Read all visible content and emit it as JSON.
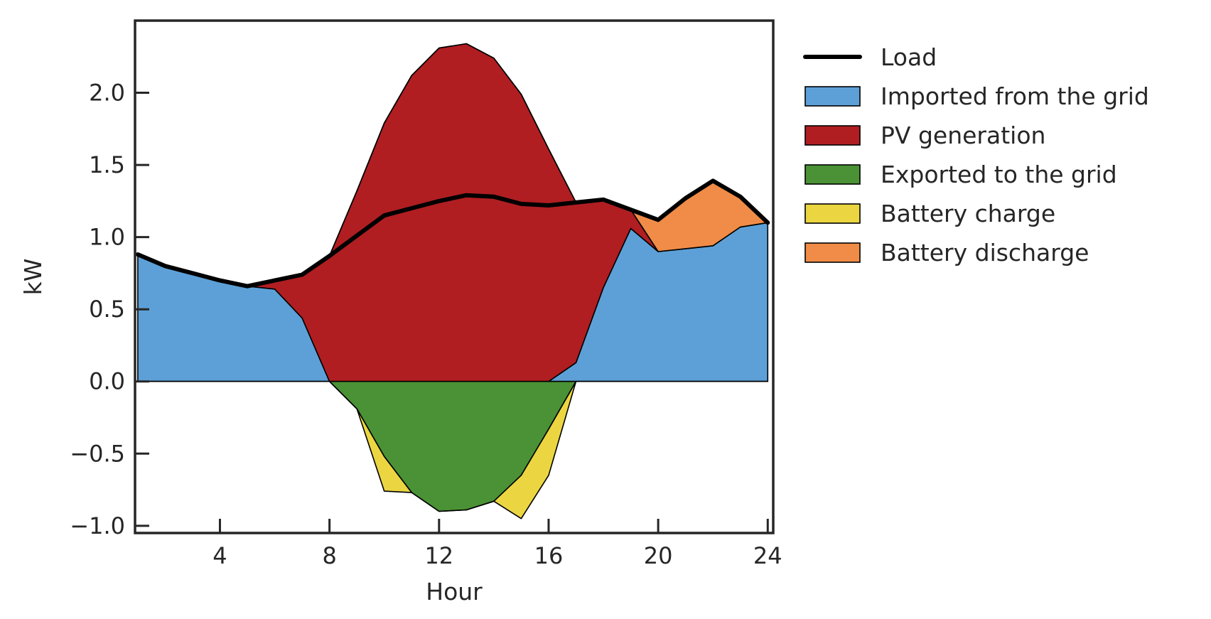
{
  "chart_data": {
    "type": "area",
    "title": "",
    "xlabel": "Hour",
    "ylabel": "kW",
    "xlim": [
      0.9,
      24.2
    ],
    "ylim": [
      -1.05,
      2.5
    ],
    "xticks": [
      4,
      8,
      12,
      16,
      20,
      24
    ],
    "yticks": [
      -1.0,
      -0.5,
      0.0,
      0.5,
      1.0,
      1.5,
      2.0
    ],
    "ytick_labels": [
      "−1.0",
      "−0.5",
      "0.0",
      "0.5",
      "1.0",
      "1.5",
      "2.0"
    ],
    "grid": false,
    "legend_position": "outside-right",
    "x": [
      1,
      2,
      3,
      4,
      5,
      6,
      7,
      8,
      9,
      10,
      11,
      12,
      13,
      14,
      15,
      16,
      17,
      18,
      19,
      20,
      21,
      22,
      23,
      24
    ],
    "series": [
      {
        "name": "Load",
        "kind": "line",
        "color": "#000000",
        "values": [
          0.88,
          0.8,
          0.75,
          0.7,
          0.66,
          0.7,
          0.74,
          0.87,
          1.01,
          1.15,
          1.2,
          1.25,
          1.29,
          1.28,
          1.23,
          1.22,
          1.24,
          1.26,
          1.19,
          1.12,
          1.27,
          1.39,
          1.28,
          1.1
        ]
      },
      {
        "name": "Imported from the grid",
        "kind": "area-positive",
        "color": "#5DA0D7",
        "values": [
          0.88,
          0.8,
          0.75,
          0.7,
          0.66,
          0.64,
          0.44,
          0.0,
          0.0,
          0.0,
          0.0,
          0.0,
          0.0,
          0.0,
          0.0,
          0.0,
          0.13,
          0.65,
          1.06,
          0.9,
          0.92,
          0.94,
          1.07,
          1.1
        ]
      },
      {
        "name": "PV generation",
        "kind": "area-positive",
        "color": "#B01E22",
        "values": [
          0.0,
          0.0,
          0.0,
          0.0,
          0.0,
          0.06,
          0.3,
          0.87,
          1.32,
          1.79,
          2.12,
          2.31,
          2.34,
          2.24,
          1.99,
          1.61,
          1.11,
          0.61,
          0.13,
          0.0,
          0.0,
          0.0,
          0.0,
          0.0
        ]
      },
      {
        "name": "Exported to the grid",
        "kind": "area-negative",
        "color": "#4A9235",
        "values": [
          0.0,
          0.0,
          0.0,
          0.0,
          0.0,
          0.0,
          0.0,
          0.0,
          -0.19,
          -0.52,
          -0.77,
          -0.9,
          -0.89,
          -0.83,
          -0.65,
          -0.33,
          0.0,
          0.0,
          0.0,
          0.0,
          0.0,
          0.0,
          0.0,
          0.0
        ]
      },
      {
        "name": "Battery charge",
        "kind": "area-negative",
        "color": "#EBD642",
        "values": [
          0.0,
          0.0,
          0.0,
          0.0,
          0.0,
          0.0,
          0.0,
          0.0,
          0.0,
          -0.24,
          0.0,
          0.0,
          0.0,
          0.0,
          -0.3,
          -0.32,
          0.0,
          0.0,
          0.0,
          0.0,
          0.0,
          0.0,
          0.0,
          0.0
        ]
      },
      {
        "name": "Battery discharge",
        "kind": "area-positive",
        "color": "#F08C47",
        "values": [
          0.0,
          0.0,
          0.0,
          0.0,
          0.0,
          0.0,
          0.0,
          0.0,
          0.0,
          0.0,
          0.0,
          0.0,
          0.0,
          0.0,
          0.0,
          0.0,
          0.0,
          0.0,
          0.0,
          0.22,
          0.35,
          0.45,
          0.21,
          0.0
        ]
      }
    ]
  }
}
